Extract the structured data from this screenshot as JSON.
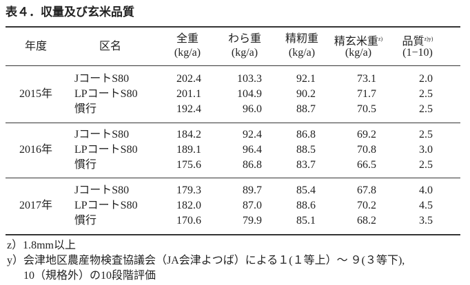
{
  "title": "表４．収量及び玄米品質",
  "table": {
    "columns": [
      {
        "name": "年度"
      },
      {
        "name": "区名"
      },
      {
        "name": "全重",
        "unit": "(kg/a)"
      },
      {
        "name": "わら重",
        "unit": "(kg/a)"
      },
      {
        "name": "精籾重",
        "unit": "(kg/a)"
      },
      {
        "name": "精玄米重",
        "note": "z)",
        "unit": "(kg/a)"
      },
      {
        "name": "品質",
        "note": "z)y)",
        "unit": "(1−10)"
      }
    ],
    "groups": [
      {
        "year": "2015年",
        "rows": [
          [
            "JコートS80",
            "202.4",
            "103.3",
            "92.1",
            "73.1",
            "2.0"
          ],
          [
            "LPコートS80",
            "201.1",
            "104.9",
            "90.2",
            "71.7",
            "2.5"
          ],
          [
            "慣行",
            "192.4",
            "96.0",
            "88.7",
            "70.5",
            "2.5"
          ]
        ]
      },
      {
        "year": "2016年",
        "rows": [
          [
            "JコートS80",
            "184.2",
            "92.4",
            "86.8",
            "69.2",
            "2.5"
          ],
          [
            "LPコートS80",
            "189.1",
            "96.4",
            "88.5",
            "70.8",
            "3.0"
          ],
          [
            "慣行",
            "175.6",
            "86.8",
            "83.7",
            "66.5",
            "2.5"
          ]
        ]
      },
      {
        "year": "2017年",
        "rows": [
          [
            "JコートS80",
            "179.3",
            "89.7",
            "85.4",
            "67.8",
            "4.0"
          ],
          [
            "LPコートS80",
            "182.0",
            "87.0",
            "88.6",
            "70.2",
            "4.5"
          ],
          [
            "慣行",
            "170.6",
            "79.9",
            "85.1",
            "68.2",
            "3.5"
          ]
        ]
      }
    ]
  },
  "footnotes": [
    "z）1.8mm以上",
    "y）会津地区農産物検査協議会（JA会津よつば）による１(１等上）～ ９(３等下),",
    "10（規格外）の10段階評価"
  ]
}
